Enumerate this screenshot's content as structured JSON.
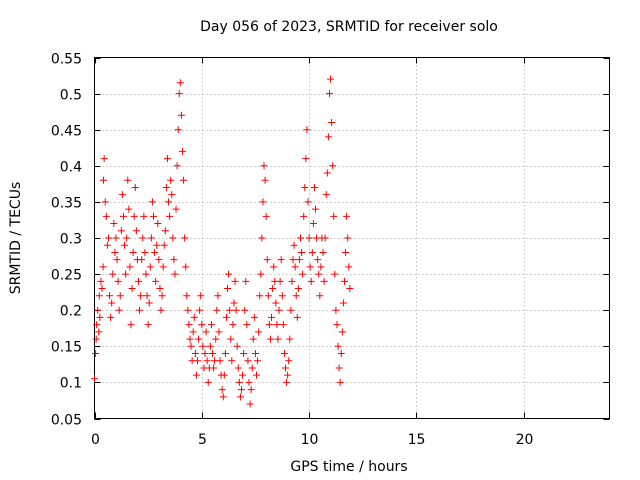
{
  "chart_data": {
    "type": "scatter",
    "title": "Day 056 of 2023, SRMTID for receiver solo",
    "xlabel": "GPS time / hours",
    "ylabel": "SRMTID / TECUs",
    "xlim": [
      0,
      24
    ],
    "ylim": [
      0.05,
      0.55
    ],
    "xticks": [
      0,
      5,
      10,
      15,
      20
    ],
    "yticks": [
      0.05,
      0.1,
      0.15,
      0.2,
      0.25,
      0.3,
      0.35,
      0.4,
      0.45,
      0.5,
      0.55
    ],
    "grid": true,
    "marker": "+",
    "color": "#ff0000",
    "series": [
      {
        "values": [
          [
            0.0,
            0.105
          ],
          [
            0.05,
            0.14
          ],
          [
            0.08,
            0.16
          ],
          [
            0.1,
            0.18
          ],
          [
            0.15,
            0.2
          ],
          [
            0.2,
            0.17
          ],
          [
            0.22,
            0.22
          ],
          [
            0.25,
            0.19
          ],
          [
            0.3,
            0.24
          ],
          [
            0.35,
            0.23
          ],
          [
            0.4,
            0.26
          ],
          [
            0.42,
            0.38
          ],
          [
            0.45,
            0.41
          ],
          [
            0.5,
            0.35
          ],
          [
            0.55,
            0.33
          ],
          [
            0.6,
            0.29
          ],
          [
            0.65,
            0.3
          ],
          [
            0.7,
            0.22
          ],
          [
            0.75,
            0.19
          ],
          [
            0.8,
            0.21
          ],
          [
            0.85,
            0.25
          ],
          [
            0.9,
            0.32
          ],
          [
            0.95,
            0.28
          ],
          [
            1.0,
            0.3
          ],
          [
            1.05,
            0.27
          ],
          [
            1.1,
            0.24
          ],
          [
            1.15,
            0.2
          ],
          [
            1.2,
            0.22
          ],
          [
            1.25,
            0.31
          ],
          [
            1.3,
            0.36
          ],
          [
            1.35,
            0.33
          ],
          [
            1.4,
            0.29
          ],
          [
            1.45,
            0.25
          ],
          [
            1.5,
            0.3
          ],
          [
            1.55,
            0.38
          ],
          [
            1.6,
            0.34
          ],
          [
            1.65,
            0.26
          ],
          [
            1.7,
            0.18
          ],
          [
            1.75,
            0.23
          ],
          [
            1.8,
            0.28
          ],
          [
            1.85,
            0.33
          ],
          [
            1.9,
            0.37
          ],
          [
            1.95,
            0.31
          ],
          [
            2.0,
            0.27
          ],
          [
            2.05,
            0.24
          ],
          [
            2.1,
            0.2
          ],
          [
            2.15,
            0.22
          ],
          [
            2.2,
            0.27
          ],
          [
            2.25,
            0.3
          ],
          [
            2.3,
            0.33
          ],
          [
            2.35,
            0.28
          ],
          [
            2.4,
            0.25
          ],
          [
            2.45,
            0.22
          ],
          [
            2.5,
            0.18
          ],
          [
            2.55,
            0.21
          ],
          [
            2.6,
            0.26
          ],
          [
            2.65,
            0.3
          ],
          [
            2.7,
            0.35
          ],
          [
            2.75,
            0.33
          ],
          [
            2.8,
            0.28
          ],
          [
            2.85,
            0.24
          ],
          [
            2.9,
            0.29
          ],
          [
            2.95,
            0.32
          ],
          [
            3.0,
            0.27
          ],
          [
            3.05,
            0.23
          ],
          [
            3.1,
            0.2
          ],
          [
            3.15,
            0.22
          ],
          [
            3.2,
            0.26
          ],
          [
            3.25,
            0.29
          ],
          [
            3.3,
            0.31
          ],
          [
            3.35,
            0.37
          ],
          [
            3.4,
            0.41
          ],
          [
            3.45,
            0.35
          ],
          [
            3.5,
            0.33
          ],
          [
            3.55,
            0.38
          ],
          [
            3.6,
            0.36
          ],
          [
            3.65,
            0.3
          ],
          [
            3.7,
            0.27
          ],
          [
            3.75,
            0.25
          ],
          [
            3.8,
            0.34
          ],
          [
            3.85,
            0.4
          ],
          [
            3.9,
            0.45
          ],
          [
            3.95,
            0.5
          ],
          [
            4.0,
            0.515
          ],
          [
            4.05,
            0.47
          ],
          [
            4.1,
            0.42
          ],
          [
            4.15,
            0.38
          ],
          [
            4.2,
            0.3
          ],
          [
            4.25,
            0.26
          ],
          [
            4.3,
            0.22
          ],
          [
            4.35,
            0.2
          ],
          [
            4.4,
            0.18
          ],
          [
            4.45,
            0.16
          ],
          [
            4.5,
            0.15
          ],
          [
            4.55,
            0.13
          ],
          [
            4.6,
            0.17
          ],
          [
            4.65,
            0.19
          ],
          [
            4.7,
            0.14
          ],
          [
            4.75,
            0.11
          ],
          [
            4.8,
            0.13
          ],
          [
            4.85,
            0.16
          ],
          [
            4.9,
            0.2
          ],
          [
            4.95,
            0.22
          ],
          [
            5.0,
            0.18
          ],
          [
            5.05,
            0.15
          ],
          [
            5.1,
            0.12
          ],
          [
            5.15,
            0.14
          ],
          [
            5.2,
            0.17
          ],
          [
            5.25,
            0.13
          ],
          [
            5.3,
            0.1
          ],
          [
            5.35,
            0.12
          ],
          [
            5.4,
            0.15
          ],
          [
            5.45,
            0.18
          ],
          [
            5.5,
            0.14
          ],
          [
            5.55,
            0.12
          ],
          [
            5.6,
            0.13
          ],
          [
            5.65,
            0.16
          ],
          [
            5.7,
            0.2
          ],
          [
            5.75,
            0.22
          ],
          [
            5.8,
            0.17
          ],
          [
            5.85,
            0.13
          ],
          [
            5.9,
            0.11
          ],
          [
            5.95,
            0.09
          ],
          [
            6.0,
            0.08
          ],
          [
            6.05,
            0.11
          ],
          [
            6.1,
            0.14
          ],
          [
            6.15,
            0.19
          ],
          [
            6.2,
            0.23
          ],
          [
            6.25,
            0.25
          ],
          [
            6.3,
            0.2
          ],
          [
            6.35,
            0.16
          ],
          [
            6.4,
            0.13
          ],
          [
            6.45,
            0.18
          ],
          [
            6.5,
            0.21
          ],
          [
            6.55,
            0.24
          ],
          [
            6.6,
            0.2
          ],
          [
            6.65,
            0.15
          ],
          [
            6.7,
            0.12
          ],
          [
            6.75,
            0.1
          ],
          [
            6.8,
            0.08
          ],
          [
            6.85,
            0.09
          ],
          [
            6.9,
            0.11
          ],
          [
            6.95,
            0.14
          ],
          [
            7.0,
            0.2
          ],
          [
            7.05,
            0.24
          ],
          [
            7.1,
            0.18
          ],
          [
            7.15,
            0.13
          ],
          [
            7.2,
            0.1
          ],
          [
            7.25,
            0.07
          ],
          [
            7.3,
            0.09
          ],
          [
            7.35,
            0.12
          ],
          [
            7.4,
            0.16
          ],
          [
            7.45,
            0.19
          ],
          [
            7.5,
            0.14
          ],
          [
            7.55,
            0.11
          ],
          [
            7.6,
            0.13
          ],
          [
            7.65,
            0.17
          ],
          [
            7.7,
            0.22
          ],
          [
            7.75,
            0.25
          ],
          [
            7.8,
            0.3
          ],
          [
            7.85,
            0.35
          ],
          [
            7.9,
            0.4
          ],
          [
            7.95,
            0.38
          ],
          [
            8.0,
            0.33
          ],
          [
            8.05,
            0.27
          ],
          [
            8.1,
            0.22
          ],
          [
            8.15,
            0.18
          ],
          [
            8.2,
            0.16
          ],
          [
            8.25,
            0.19
          ],
          [
            8.3,
            0.23
          ],
          [
            8.35,
            0.26
          ],
          [
            8.4,
            0.24
          ],
          [
            8.45,
            0.21
          ],
          [
            8.5,
            0.18
          ],
          [
            8.55,
            0.16
          ],
          [
            8.6,
            0.2
          ],
          [
            8.65,
            0.24
          ],
          [
            8.7,
            0.27
          ],
          [
            8.75,
            0.22
          ],
          [
            8.8,
            0.18
          ],
          [
            8.85,
            0.14
          ],
          [
            8.9,
            0.12
          ],
          [
            8.95,
            0.1
          ],
          [
            9.0,
            0.11
          ],
          [
            9.05,
            0.13
          ],
          [
            9.1,
            0.16
          ],
          [
            9.15,
            0.2
          ],
          [
            9.2,
            0.24
          ],
          [
            9.25,
            0.27
          ],
          [
            9.3,
            0.29
          ],
          [
            9.35,
            0.26
          ],
          [
            9.4,
            0.22
          ],
          [
            9.45,
            0.19
          ],
          [
            9.5,
            0.23
          ],
          [
            9.55,
            0.27
          ],
          [
            9.6,
            0.3
          ],
          [
            9.65,
            0.28
          ],
          [
            9.7,
            0.25
          ],
          [
            9.75,
            0.33
          ],
          [
            9.8,
            0.37
          ],
          [
            9.85,
            0.41
          ],
          [
            9.9,
            0.45
          ],
          [
            9.95,
            0.35
          ],
          [
            10.0,
            0.3
          ],
          [
            10.05,
            0.26
          ],
          [
            10.1,
            0.24
          ],
          [
            10.15,
            0.28
          ],
          [
            10.2,
            0.32
          ],
          [
            10.25,
            0.37
          ],
          [
            10.3,
            0.34
          ],
          [
            10.35,
            0.3
          ],
          [
            10.4,
            0.27
          ],
          [
            10.45,
            0.25
          ],
          [
            10.5,
            0.22
          ],
          [
            10.55,
            0.26
          ],
          [
            10.6,
            0.3
          ],
          [
            10.65,
            0.28
          ],
          [
            10.7,
            0.24
          ],
          [
            10.75,
            0.3
          ],
          [
            10.8,
            0.36
          ],
          [
            10.85,
            0.39
          ],
          [
            10.9,
            0.44
          ],
          [
            10.95,
            0.5
          ],
          [
            11.0,
            0.52
          ],
          [
            11.05,
            0.46
          ],
          [
            11.1,
            0.4
          ],
          [
            11.15,
            0.33
          ],
          [
            11.2,
            0.25
          ],
          [
            11.25,
            0.2
          ],
          [
            11.3,
            0.18
          ],
          [
            11.35,
            0.15
          ],
          [
            11.4,
            0.12
          ],
          [
            11.45,
            0.1
          ],
          [
            11.5,
            0.14
          ],
          [
            11.55,
            0.17
          ],
          [
            11.6,
            0.21
          ],
          [
            11.65,
            0.24
          ],
          [
            11.7,
            0.28
          ],
          [
            11.75,
            0.33
          ],
          [
            11.8,
            0.3
          ],
          [
            11.85,
            0.26
          ],
          [
            11.9,
            0.23
          ]
        ]
      }
    ]
  }
}
